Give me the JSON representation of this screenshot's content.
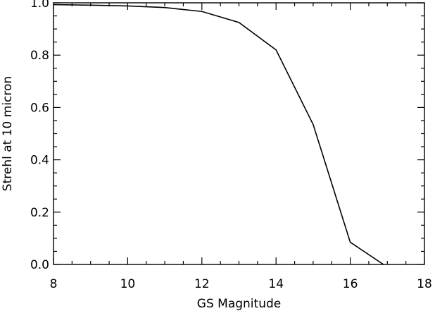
{
  "chart_data": {
    "type": "line",
    "title": "",
    "xlabel": "GS Magnitude",
    "ylabel": "Strehl at 10 micron",
    "xlim": [
      8,
      18
    ],
    "ylim": [
      0.0,
      1.0
    ],
    "x_ticks": [
      8,
      10,
      12,
      14,
      16,
      18
    ],
    "x_tick_labels": [
      "8",
      "10",
      "12",
      "14",
      "16",
      "18"
    ],
    "y_ticks": [
      0.0,
      0.2,
      0.4,
      0.6,
      0.8,
      1.0
    ],
    "y_tick_labels": [
      "0.0",
      "0.2",
      "0.4",
      "0.6",
      "0.8",
      "1.0"
    ],
    "x_minor_step": 0.5,
    "y_minor_step": 0.05,
    "grid": false,
    "legend": "none",
    "series": [
      {
        "x": [
          8,
          9,
          10,
          11,
          12,
          13,
          14,
          15,
          16,
          17
        ],
        "y": [
          0.993,
          0.991,
          0.988,
          0.982,
          0.967,
          0.925,
          0.82,
          0.535,
          0.085,
          -0.01
        ]
      }
    ]
  }
}
